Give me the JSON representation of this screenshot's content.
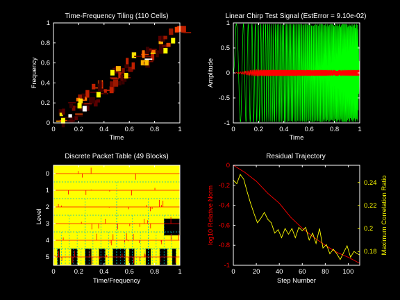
{
  "colors": {
    "background": "#000000",
    "axes": "#ffffff",
    "green": "#00ff00",
    "red": "#ff0000",
    "yellow": "#ffff00",
    "cyan": "#00ffff"
  },
  "chart_data": [
    {
      "type": "heatmap",
      "title": "Time-Frequency Tiling (110 Cells)",
      "xlabel": "Time",
      "ylabel": "Frequency",
      "xlim": [
        0,
        1
      ],
      "ylim": [
        0,
        1
      ],
      "xticks": [
        "0",
        "0.2",
        "0.4",
        "0.6",
        "0.8",
        "1"
      ],
      "yticks": [
        "0",
        "0.2",
        "0.4",
        "0.6",
        "0.8",
        "1"
      ]
    },
    {
      "type": "line",
      "title": "Linear Chirp Test Signal (EstError = 9.10e-02)",
      "xlabel": "Time",
      "ylabel": "Amplitude",
      "xlim": [
        0,
        1
      ],
      "ylim": [
        -1,
        1
      ],
      "xticks": [
        "0",
        "0.2",
        "0.4",
        "0.6",
        "0.8",
        "1"
      ],
      "yticks": [
        "-1",
        "-0.5",
        "0",
        "0.5",
        "1"
      ],
      "series_colors": [
        "#00ff00",
        "#ff0000"
      ]
    },
    {
      "type": "heatmap",
      "title": "Discrete Packet Table (49 Blocks)",
      "xlabel": "Time/Frequency",
      "ylabel": "Level",
      "xlim": [
        0,
        1
      ],
      "ylim": [
        5.5,
        -0.5
      ],
      "xticks": [
        "0",
        "0.2",
        "0.4",
        "0.6",
        "0.8",
        "1"
      ],
      "yticks": [
        "0",
        "1",
        "2",
        "3",
        "4",
        "5"
      ]
    },
    {
      "type": "line",
      "title": "Residual Trajectory",
      "xlabel": "Step Number",
      "ylabel": "log10 Relative Norm",
      "ylabel_right": "Maximum Correlation Ratio",
      "xlim": [
        0,
        110
      ],
      "ylim": [
        -1,
        0
      ],
      "ylim_right": [
        0.168,
        0.255
      ],
      "xticks": [
        "0",
        "20",
        "40",
        "60",
        "80",
        "100"
      ],
      "yticks": [
        "-1",
        "-0.8",
        "-0.6",
        "-0.4",
        "-0.2",
        "0"
      ],
      "yticks_right": [
        "0.18",
        "0.2",
        "0.22",
        "0.24"
      ],
      "series": [
        {
          "color": "#ff0000",
          "axis": "left",
          "x": [
            0,
            10,
            20,
            30,
            40,
            50,
            60,
            70,
            80,
            90,
            100,
            110
          ],
          "y": [
            0,
            -0.07,
            -0.16,
            -0.28,
            -0.38,
            -0.52,
            -0.63,
            -0.72,
            -0.8,
            -0.87,
            -0.92,
            -0.98
          ]
        },
        {
          "color": "#ffff00",
          "axis": "right",
          "x": [
            0,
            3,
            6,
            9,
            12,
            15,
            18,
            21,
            24,
            27,
            30,
            33,
            36,
            39,
            42,
            45,
            48,
            51,
            54,
            57,
            60,
            63,
            66,
            69,
            72,
            75,
            78,
            81,
            84,
            87,
            90,
            93,
            96,
            99,
            102,
            105,
            108,
            110
          ],
          "y": [
            0.242,
            0.239,
            0.247,
            0.243,
            0.232,
            0.222,
            0.213,
            0.205,
            0.209,
            0.214,
            0.208,
            0.205,
            0.196,
            0.199,
            0.192,
            0.2,
            0.195,
            0.2,
            0.192,
            0.201,
            0.198,
            0.201,
            0.19,
            0.196,
            0.187,
            0.2,
            0.183,
            0.186,
            0.178,
            0.182,
            0.178,
            0.173,
            0.179,
            0.185,
            0.175,
            0.18,
            0.178,
            0.177
          ]
        }
      ]
    }
  ]
}
